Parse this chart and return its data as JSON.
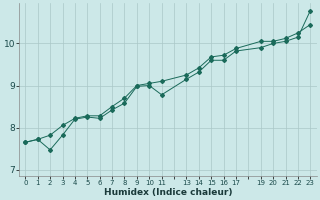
{
  "xlabel": "Humidex (Indice chaleur)",
  "bg_color": "#cce8e8",
  "plot_bg_color": "#cce8e8",
  "line_color": "#1a6a5a",
  "grid_color": "#aac8c8",
  "x_data": [
    0,
    1,
    2,
    3,
    4,
    5,
    6,
    7,
    8,
    9,
    10,
    11,
    13,
    14,
    15,
    16,
    17,
    19,
    20,
    21,
    22,
    23
  ],
  "y_line1": [
    7.65,
    7.72,
    7.47,
    7.82,
    8.2,
    8.25,
    8.22,
    8.42,
    8.58,
    8.98,
    9.0,
    8.78,
    9.15,
    9.32,
    9.6,
    9.6,
    9.82,
    9.9,
    10.0,
    10.05,
    10.15,
    10.78
  ],
  "y_line2": [
    7.65,
    7.72,
    7.82,
    8.05,
    8.22,
    8.28,
    8.28,
    8.5,
    8.7,
    9.0,
    9.05,
    9.1,
    9.25,
    9.42,
    9.68,
    9.72,
    9.88,
    10.05,
    10.05,
    10.12,
    10.25,
    10.45
  ],
  "ylim": [
    6.85,
    10.95
  ],
  "xlim": [
    -0.5,
    23.5
  ],
  "yticks": [
    7,
    8,
    9,
    10
  ],
  "xticks": [
    0,
    1,
    2,
    3,
    4,
    5,
    6,
    7,
    8,
    9,
    10,
    11,
    13,
    14,
    15,
    16,
    17,
    19,
    20,
    21,
    22,
    23
  ],
  "xlabel_fontsize": 6.5,
  "tick_fontsize": 5.0,
  "ytick_fontsize": 6.5,
  "linewidth": 0.7,
  "markersize": 2.0
}
